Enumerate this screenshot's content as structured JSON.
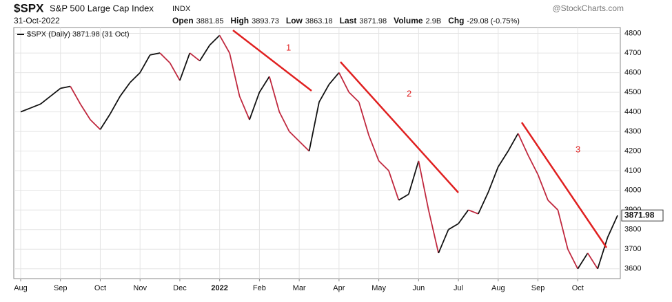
{
  "header": {
    "symbol": "$SPX",
    "name": "S&P 500 Large Cap Index",
    "exchange": "INDX",
    "date": "31-Oct-2022",
    "watermark": "@StockCharts.com",
    "quote": [
      {
        "label": "Open",
        "value": "3881.85"
      },
      {
        "label": "High",
        "value": "3893.73"
      },
      {
        "label": "Low",
        "value": "3863.18"
      },
      {
        "label": "Last",
        "value": "3871.98"
      },
      {
        "label": "Volume",
        "value": "2.9B"
      },
      {
        "label": "Chg",
        "value": "-29.08 (-0.75%)"
      }
    ]
  },
  "chart_data": {
    "type": "line",
    "categories": [
      "Aug",
      null,
      null,
      null,
      "Sep",
      null,
      null,
      null,
      "Oct",
      null,
      null,
      null,
      "Nov",
      null,
      null,
      null,
      "Dec",
      null,
      null,
      null,
      "2022",
      null,
      null,
      null,
      "Feb",
      null,
      null,
      null,
      "Mar",
      null,
      null,
      null,
      "Apr",
      null,
      null,
      null,
      "May",
      null,
      null,
      null,
      "Jun",
      null,
      null,
      null,
      "Jul",
      null,
      null,
      null,
      "Aug",
      null,
      null,
      null,
      "Sep",
      null,
      null,
      null,
      "Oct",
      null,
      null,
      null,
      null
    ],
    "series": [
      {
        "name": "$SPX (Daily) 3871.98 (31 Oct)",
        "up_color": "#111111",
        "down_color": "#c0283e",
        "values": [
          4400,
          4420,
          4440,
          4480,
          4520,
          4530,
          4440,
          4360,
          4310,
          4390,
          4480,
          4550,
          4600,
          4690,
          4700,
          4650,
          4560,
          4700,
          4660,
          4740,
          4790,
          4700,
          4480,
          4360,
          4500,
          4580,
          4400,
          4300,
          4250,
          4200,
          4450,
          4540,
          4600,
          4500,
          4450,
          4280,
          4150,
          4100,
          3950,
          3980,
          4150,
          3900,
          3680,
          3800,
          3830,
          3900,
          3880,
          3990,
          4120,
          4200,
          4290,
          4180,
          4080,
          3950,
          3900,
          3700,
          3600,
          3680,
          3600,
          3760,
          3871.98
        ],
        "last_label": "3871.98"
      }
    ],
    "ylim": [
      3550,
      4830
    ],
    "yticks": [
      3600,
      3700,
      3800,
      3900,
      4000,
      4100,
      4200,
      4300,
      4400,
      4500,
      4600,
      4700,
      4800
    ],
    "grid": true,
    "annotations": [
      {
        "text": "1"
      },
      {
        "text": "2"
      },
      {
        "text": "3"
      }
    ]
  }
}
